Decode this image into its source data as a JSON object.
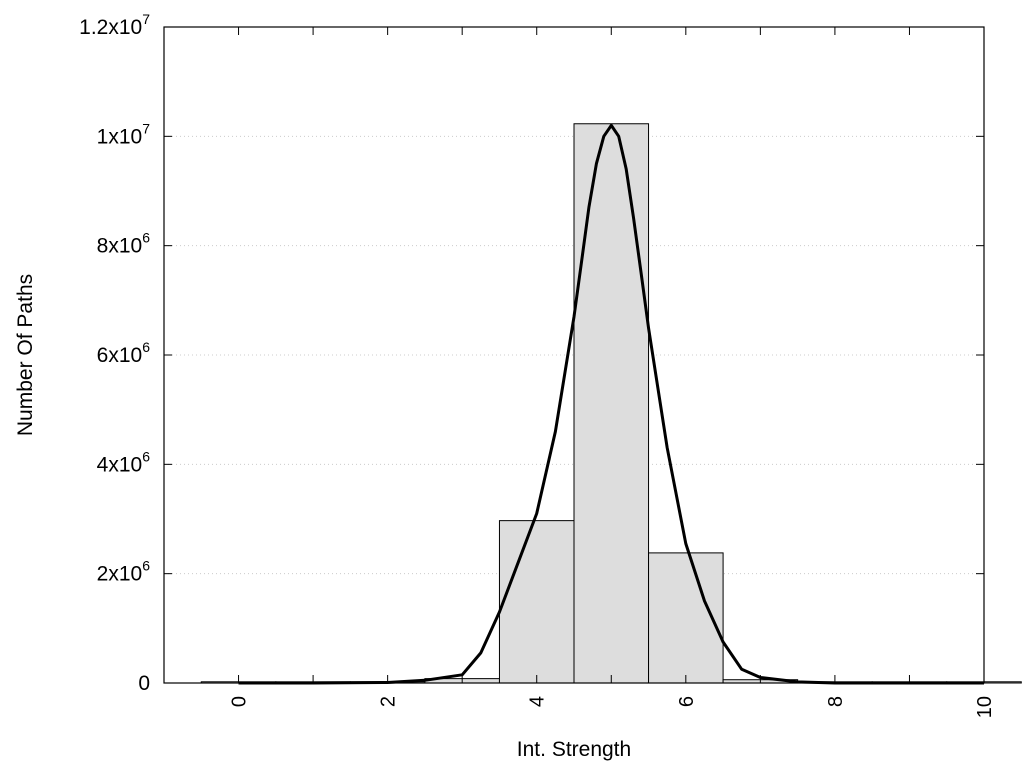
{
  "chart_data": {
    "type": "bar",
    "xlabel": "Int. Strength",
    "ylabel": "Number Of Paths",
    "xlim": [
      -1,
      10
    ],
    "ylim": [
      0,
      12000000
    ],
    "grid": "horizontal-dotted",
    "legend": "none",
    "colors": {
      "bar_fill": "#dddddd",
      "bar_stroke": "#000000",
      "curve": "#000000",
      "grid": "#cccccc"
    },
    "x_ticks": [
      {
        "value": 0,
        "label": "0"
      },
      {
        "value": 2,
        "label": "2"
      },
      {
        "value": 4,
        "label": "4"
      },
      {
        "value": 6,
        "label": "6"
      },
      {
        "value": 8,
        "label": "8"
      },
      {
        "value": 10,
        "label": "10"
      }
    ],
    "x_minor_ticks": [
      1,
      3,
      5,
      7,
      9
    ],
    "y_ticks": [
      {
        "value": 0,
        "base": "0",
        "exp": ""
      },
      {
        "value": 2000000,
        "base": "2x10",
        "exp": "6"
      },
      {
        "value": 4000000,
        "base": "4x10",
        "exp": "6"
      },
      {
        "value": 6000000,
        "base": "6x10",
        "exp": "6"
      },
      {
        "value": 8000000,
        "base": "8x10",
        "exp": "6"
      },
      {
        "value": 10000000,
        "base": "1x10",
        "exp": "7"
      },
      {
        "value": 12000000,
        "base": "1.2x10",
        "exp": "7"
      }
    ],
    "bins": [
      {
        "x": 0,
        "count": 0
      },
      {
        "x": 1,
        "count": 0
      },
      {
        "x": 2,
        "count": 0
      },
      {
        "x": 3,
        "count": 80000
      },
      {
        "x": 4,
        "count": 2970000
      },
      {
        "x": 5,
        "count": 10230000
      },
      {
        "x": 6,
        "count": 2380000
      },
      {
        "x": 7,
        "count": 60000
      },
      {
        "x": 8,
        "count": 0
      },
      {
        "x": 9,
        "count": 0
      },
      {
        "x": 10,
        "count": 0
      }
    ],
    "bin_width": 1,
    "fit_curve": {
      "type": "line",
      "x": [
        0,
        1,
        2,
        2.5,
        3,
        3.25,
        3.5,
        3.75,
        4,
        4.25,
        4.5,
        4.6,
        4.7,
        4.8,
        4.9,
        5,
        5.1,
        5.2,
        5.3,
        5.4,
        5.5,
        5.75,
        6,
        6.25,
        6.5,
        6.75,
        7,
        7.5,
        8,
        9,
        10
      ],
      "y": [
        0,
        0,
        10000,
        50000,
        150000,
        550000,
        1300000,
        2200000,
        3100000,
        4600000,
        6700000,
        7700000,
        8700000,
        9500000,
        10000000,
        10200000,
        10000000,
        9400000,
        8500000,
        7500000,
        6500000,
        4300000,
        2550000,
        1500000,
        750000,
        250000,
        100000,
        20000,
        0,
        0,
        0
      ]
    }
  }
}
